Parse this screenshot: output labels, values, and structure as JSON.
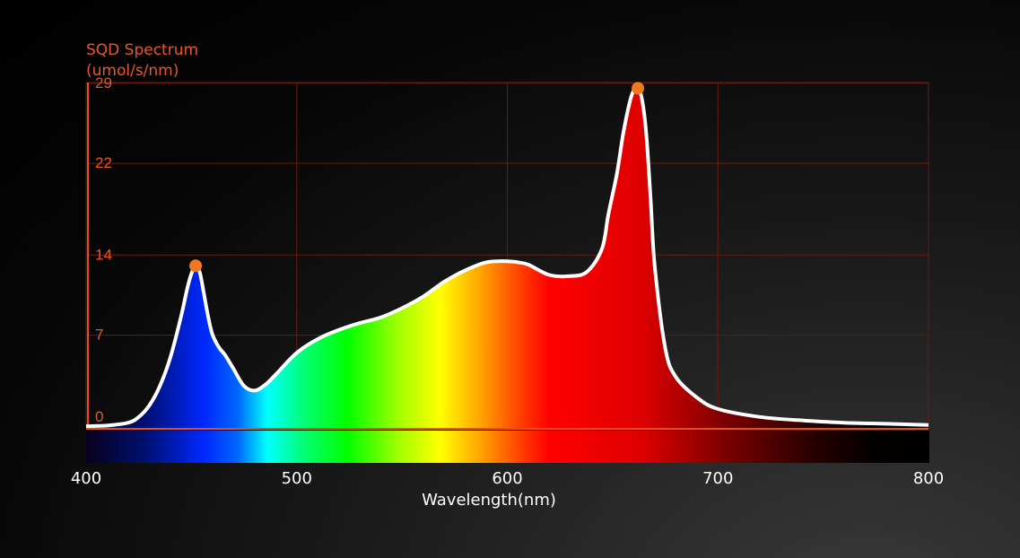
{
  "chart_data": {
    "type": "area",
    "title": "SQD Spectrum",
    "subtitle": "(umol/s/nm)",
    "xlabel": "Wavelength(nm)",
    "ylabel": "",
    "xlim": [
      400,
      800
    ],
    "ylim": [
      0,
      30
    ],
    "x_ticks": [
      "400",
      "500",
      "600",
      "700",
      "800"
    ],
    "y_ticks": [
      "0",
      "7",
      "14",
      "22",
      "29"
    ],
    "grid": true,
    "peak_markers": [
      {
        "x": 452,
        "y": 14
      },
      {
        "x": 662,
        "y": 29.5
      }
    ],
    "x": [
      400,
      410,
      420,
      425,
      430,
      435,
      440,
      445,
      448,
      450,
      452,
      454,
      456,
      458,
      460,
      463,
      466,
      470,
      475,
      480,
      485,
      490,
      500,
      510,
      520,
      530,
      540,
      550,
      560,
      570,
      580,
      590,
      600,
      605,
      610,
      620,
      630,
      638,
      645,
      648,
      652,
      655,
      658,
      660,
      662,
      664,
      666,
      668,
      670,
      675,
      680,
      690,
      700,
      720,
      740,
      760,
      780,
      800
    ],
    "y": [
      0,
      0.05,
      0.3,
      0.8,
      1.8,
      3.5,
      6.0,
      9.5,
      12.0,
      13.3,
      14.0,
      13.4,
      11.5,
      9.5,
      8.0,
      6.9,
      6.2,
      5.0,
      3.5,
      3.1,
      3.6,
      4.5,
      6.4,
      7.6,
      8.4,
      9.0,
      9.5,
      10.3,
      11.3,
      12.6,
      13.6,
      14.3,
      14.4,
      14.3,
      14.1,
      13.2,
      13.1,
      13.5,
      15.5,
      18.5,
      22.0,
      25.5,
      28.2,
      29.3,
      29.5,
      28.5,
      25.5,
      20.0,
      14.0,
      6.8,
      4.3,
      2.5,
      1.5,
      0.8,
      0.5,
      0.3,
      0.2,
      0.1
    ]
  },
  "colors": {
    "axis_text": "#e8562a",
    "grid": "#6a1a10",
    "curve": "#ffffff",
    "marker": "#f07820",
    "tick_label": "#ffffff"
  }
}
